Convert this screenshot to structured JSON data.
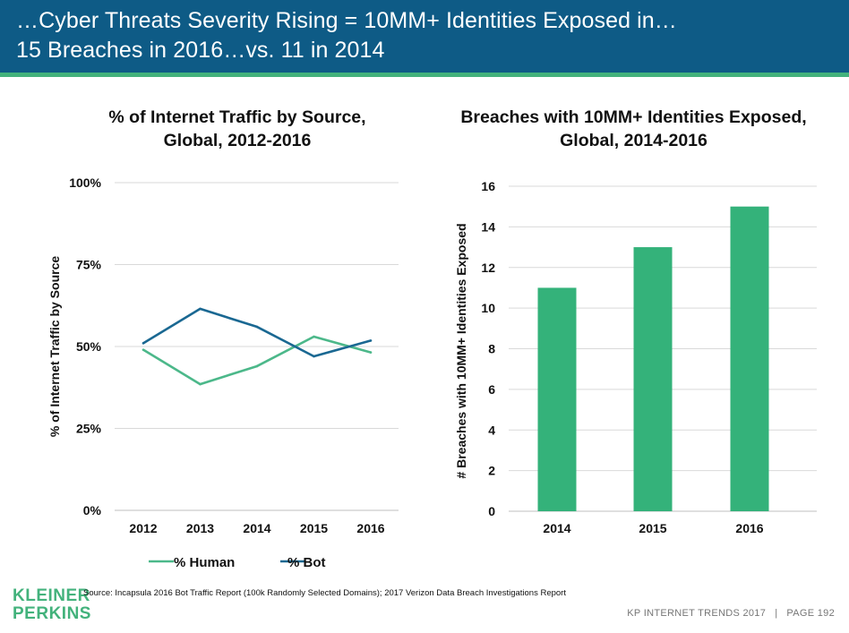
{
  "header": {
    "line1": "…Cyber Threats Severity Rising = 10MM+ Identities Exposed in…",
    "line2": "15 Breaches in 2016…vs. 11 in 2014"
  },
  "colors": {
    "header_bg": "#0e5b86",
    "accent_green": "#43b27c",
    "human": "#4cb88a",
    "bot": "#1a6892",
    "bar": "#34b27a"
  },
  "chart_data": [
    {
      "type": "line",
      "title_line1": "% of Internet Traffic by Source,",
      "title_line2": "Global, 2012-2016",
      "ylabel": "% of Internet Traffic by Source",
      "xlabel": "",
      "categories": [
        "2012",
        "2013",
        "2014",
        "2015",
        "2016"
      ],
      "ylim": [
        0,
        100
      ],
      "yticks": [
        0,
        25,
        50,
        75,
        100
      ],
      "ytick_labels": [
        "0%",
        "25%",
        "50%",
        "75%",
        "100%"
      ],
      "grid": true,
      "legend_position": "bottom",
      "series": [
        {
          "name": "% Human",
          "values": [
            49,
            38.5,
            44,
            53,
            48.2
          ]
        },
        {
          "name": "% Bot",
          "values": [
            51,
            61.5,
            56,
            47,
            51.8
          ]
        }
      ]
    },
    {
      "type": "bar",
      "title_line1": "Breaches with 10MM+ Identities Exposed,",
      "title_line2": "Global, 2014-2016",
      "ylabel": "# Breaches with 10MM+ Identities Exposed",
      "xlabel": "",
      "categories": [
        "2014",
        "2015",
        "2016"
      ],
      "values": [
        11,
        13,
        15
      ],
      "ylim": [
        0,
        16
      ],
      "yticks": [
        0,
        2,
        4,
        6,
        8,
        10,
        12,
        14,
        16
      ],
      "ytick_labels": [
        "0",
        "2",
        "4",
        "6",
        "8",
        "10",
        "12",
        "14",
        "16"
      ],
      "grid": true
    }
  ],
  "footer": {
    "logo_line1": "KLEINER",
    "logo_line2": "PERKINS",
    "source": "Source: Incapsula 2016 Bot Traffic Report (100k Randomly Selected Domains); 2017 Verizon Data Breach Investigations Report",
    "right_text": "KP INTERNET TRENDS 2017   |   PAGE 192"
  }
}
